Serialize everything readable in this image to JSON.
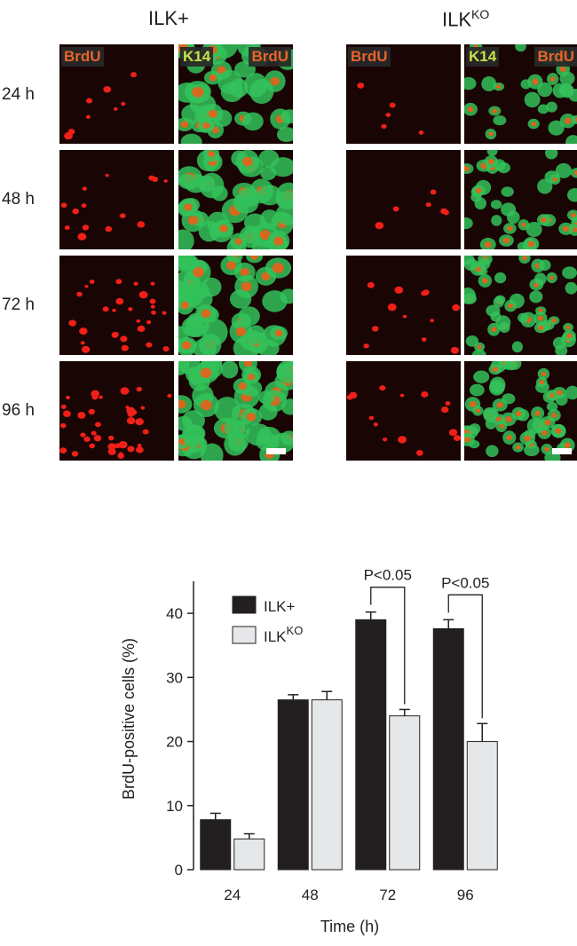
{
  "colors": {
    "ilk_plus": "#231f20",
    "ilk_ko": "#e6e7e8",
    "nuclei": "#f02018",
    "k14": "#33c25a",
    "background": "#1a0505"
  },
  "micrographs": {
    "conditions": [
      {
        "name": "ILK+",
        "name_base": "ILK+",
        "name_sup": ""
      },
      {
        "name": "ILKKO",
        "name_base": "ILK",
        "name_sup": "KO"
      }
    ],
    "channels": [
      {
        "label": "BrdU",
        "merge_label_a": "",
        "merge_label_b": ""
      },
      {
        "label": "",
        "merge_label_a": "K14",
        "merge_label_b": "BrdU"
      }
    ],
    "time_points": [
      "24 h",
      "48 h",
      "72 h",
      "96 h"
    ],
    "scale_bar": true
  },
  "chart_data": {
    "type": "bar",
    "xlabel": "Time (h)",
    "ylabel": "BrdU-positive cells (%)",
    "categories": [
      "24",
      "48",
      "72",
      "96"
    ],
    "ylim": [
      0,
      45
    ],
    "yticks": [
      0,
      10,
      20,
      30,
      40
    ],
    "legend_position": "top-left",
    "series": [
      {
        "name": "ILK+",
        "name_base": "ILK+",
        "name_sup": "",
        "values": [
          7.8,
          26.5,
          39.0,
          37.6
        ],
        "errors": [
          1.0,
          0.8,
          1.2,
          1.4
        ]
      },
      {
        "name": "ILKKO",
        "name_base": "ILK",
        "name_sup": "KO",
        "values": [
          4.8,
          26.5,
          24.0,
          20.0
        ],
        "errors": [
          0.8,
          1.3,
          1.0,
          2.8
        ]
      }
    ],
    "annotations": [
      {
        "text": "P<0.05",
        "category": "72"
      },
      {
        "text": "P<0.05",
        "category": "96"
      }
    ]
  }
}
